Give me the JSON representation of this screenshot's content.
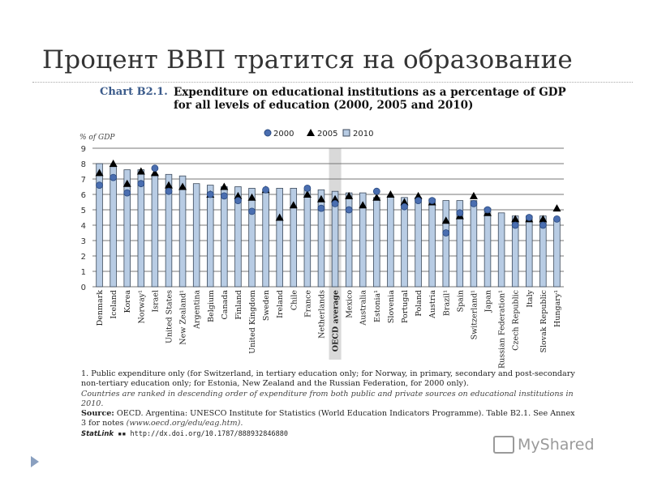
{
  "slide": {
    "title": "Процент ВВП тратится на образование",
    "watermark": "MyShared"
  },
  "chart_data": {
    "type": "bar",
    "label": "Chart B2.1.",
    "title_line1": "Expenditure on educational institutions as a percentage of GDP",
    "title_line2": "for all levels of education (2000, 2005 and 2010)",
    "ylabel": "% of GDP",
    "ylim": [
      0,
      9
    ],
    "yticks": [
      "0",
      "1",
      "2",
      "3",
      "4",
      "5",
      "6",
      "7",
      "8",
      "9"
    ],
    "grid": true,
    "legend_position": "top-right",
    "legend": [
      "2000",
      "2005",
      "2010"
    ],
    "highlight_category": "OECD average",
    "colors": {
      "bar_2010": "#b8cce4",
      "bar_edge": "#3c4a5c",
      "marker_2000": "#4a6eb0",
      "marker_2005": "#000000",
      "highlight": "#d9d9d9"
    },
    "categories": [
      "Denmark",
      "Iceland",
      "Korea",
      "Norway¹",
      "Israel",
      "United States",
      "New Zealand¹",
      "Argentina",
      "Belgium",
      "Canada",
      "Finland",
      "United Kingdom",
      "Sweden",
      "Ireland",
      "Chile",
      "France",
      "Netherlands",
      "OECD average",
      "Mexico",
      "Australia",
      "Estonia¹",
      "Slovenia",
      "Portugal",
      "Poland",
      "Austria",
      "Brazil¹",
      "Spain",
      "Switzerland¹",
      "Japan",
      "Russian Federation¹",
      "Czech Republic",
      "Italy",
      "Slovak Republic",
      "Hungary¹"
    ],
    "series": [
      {
        "name": "2010",
        "kind": "bar",
        "values": [
          8.0,
          7.8,
          7.6,
          7.6,
          7.3,
          7.3,
          7.2,
          6.7,
          6.6,
          6.5,
          6.5,
          6.4,
          6.3,
          6.4,
          6.4,
          6.3,
          6.3,
          6.2,
          6.1,
          6.1,
          5.8,
          5.9,
          5.8,
          5.8,
          5.7,
          5.6,
          5.6,
          5.6,
          5.1,
          4.8,
          4.6,
          4.6,
          4.6,
          4.4
        ]
      },
      {
        "name": "2005",
        "kind": "triangle",
        "values": [
          7.4,
          8.0,
          6.7,
          7.5,
          7.4,
          6.6,
          6.5,
          null,
          6.0,
          6.5,
          5.9,
          5.8,
          6.3,
          4.5,
          5.3,
          6.0,
          5.7,
          5.7,
          5.9,
          5.3,
          5.8,
          6.0,
          5.5,
          5.9,
          5.5,
          4.3,
          4.6,
          5.9,
          4.8,
          null,
          4.4,
          4.4,
          4.4,
          5.1
        ]
      },
      {
        "name": "2000",
        "kind": "circle",
        "values": [
          6.6,
          7.1,
          6.1,
          6.7,
          7.7,
          6.2,
          null,
          null,
          6.0,
          5.9,
          5.6,
          4.9,
          6.3,
          null,
          null,
          6.4,
          5.1,
          5.4,
          5.0,
          null,
          6.2,
          null,
          5.2,
          5.6,
          5.6,
          3.5,
          4.8,
          5.4,
          5.0,
          null,
          4.0,
          4.5,
          4.0,
          4.4
        ]
      }
    ]
  },
  "footnotes": {
    "note1": "1. Public expenditure only (for Switzerland, in tertiary education only; for Norway, in primary, secondary and post-secondary non-tertiary education only; for Estonia, New Zealand and the Russian Federation, for 2000 only).",
    "ranking": "Countries are ranked in descending order of expenditure from both public and private sources on educational institutions in 2010.",
    "source_label": "Source:",
    "source_text": "OECD. Argentina: UNESCO Institute for Statistics (World Education Indicators Programme). Table B2.1. See Annex 3 for notes",
    "source_url": "(www.oecd.org/edu/eag.htm).",
    "statlink_label": "StatLink",
    "statlink_url": "http://dx.doi.org/10.1787/888932846880"
  }
}
